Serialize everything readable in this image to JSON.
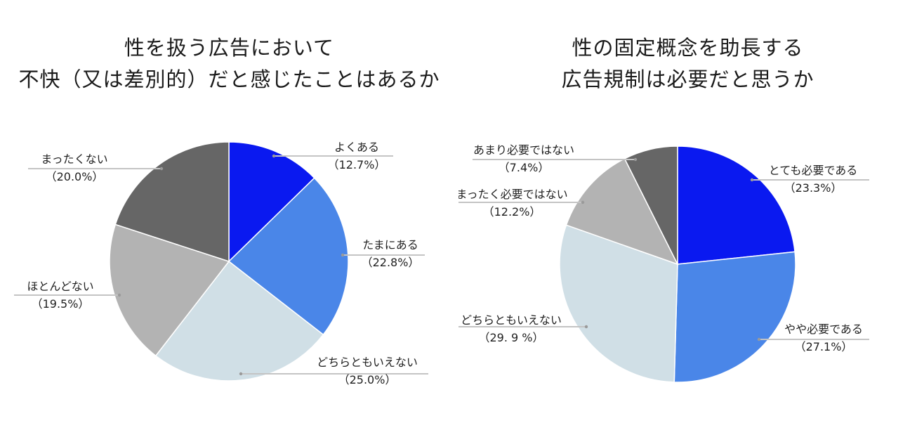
{
  "chart_data": [
    {
      "type": "pie",
      "title_lines": [
        "性を扱う広告において",
        "不快（又は差別的）だと感じたことはあるか"
      ],
      "slices": [
        {
          "label": "よくある",
          "pct_label": "（12.7%）",
          "value": 12.7,
          "color": "#0a19f0"
        },
        {
          "label": "たまにある",
          "pct_label": "（22.8%）",
          "value": 22.8,
          "color": "#4a86e8"
        },
        {
          "label": "どちらともいえない",
          "pct_label": "（25.0%）",
          "value": 25.0,
          "color": "#d0dfe6"
        },
        {
          "label": "ほとんどない",
          "pct_label": "（19.5%）",
          "value": 19.5,
          "color": "#b3b3b3"
        },
        {
          "label": "まったくない",
          "pct_label": "（20.0%）",
          "value": 20.0,
          "color": "#666666"
        }
      ]
    },
    {
      "type": "pie",
      "title_lines": [
        "性の固定概念を助長する",
        "広告規制は必要だと思うか"
      ],
      "slices": [
        {
          "label": "とても必要である",
          "pct_label": "（23.3%）",
          "value": 23.3,
          "color": "#0a19f0"
        },
        {
          "label": "やや必要である",
          "pct_label": "（27.1%）",
          "value": 27.1,
          "color": "#4a86e8"
        },
        {
          "label": "どちらともいえない",
          "pct_label": "（29. 9 %）",
          "value": 29.9,
          "color": "#d0dfe6"
        },
        {
          "label": "まったく必要ではない",
          "pct_label": "（12.2%）",
          "value": 12.2,
          "color": "#b3b3b3"
        },
        {
          "label": "あまり必要ではない",
          "pct_label": "（7.4%）",
          "value": 7.4,
          "color": "#666666"
        }
      ]
    }
  ]
}
